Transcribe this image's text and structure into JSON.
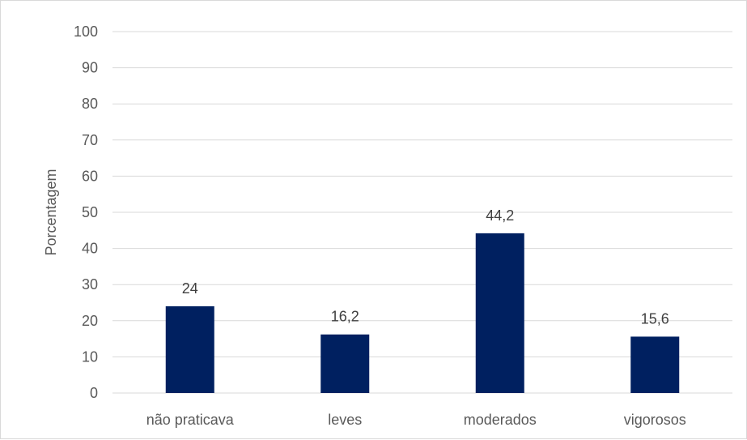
{
  "chart_data": {
    "type": "bar",
    "title": "",
    "xlabel": "",
    "ylabel": "Porcentagem",
    "categories": [
      "não praticava",
      "leves",
      "moderados",
      "vigorosos"
    ],
    "values": [
      24,
      16.2,
      44.2,
      15.6
    ],
    "value_labels": [
      "24",
      "16,2",
      "44,2",
      "15,6"
    ],
    "ylim": [
      0,
      100
    ],
    "yticks": [
      0,
      10,
      20,
      30,
      40,
      50,
      60,
      70,
      80,
      90,
      100
    ],
    "grid": true,
    "legend": false,
    "bar_color": "#002060",
    "grid_color": "#d9d9d9"
  }
}
